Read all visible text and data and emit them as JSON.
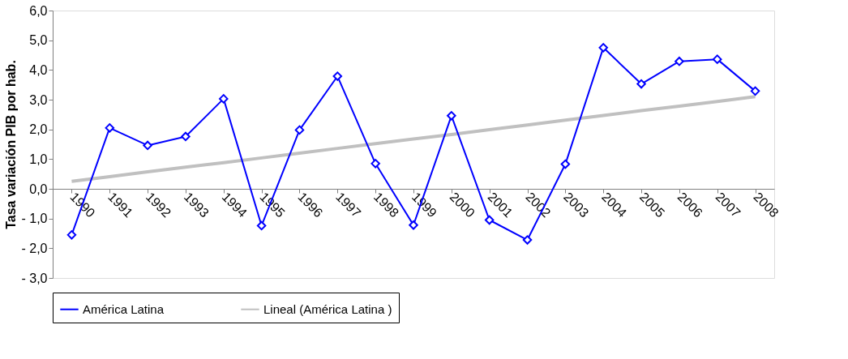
{
  "chart_data": {
    "type": "line",
    "ylabel": "Tasa variación PIB por hab.",
    "categories": [
      "1990",
      "1991",
      "1992",
      "1993",
      "1994",
      "1995",
      "1996",
      "1997",
      "1998",
      "1999",
      "2000",
      "2001",
      "2002",
      "2003",
      "2004",
      "2005",
      "2006",
      "2007",
      "2008"
    ],
    "series": [
      {
        "name": "América Latina",
        "color": "#0000ff",
        "marker": "diamond",
        "values": [
          -1.55,
          2.05,
          1.46,
          1.76,
          3.03,
          -1.24,
          1.98,
          3.79,
          0.85,
          -1.22,
          2.46,
          -1.05,
          -1.72,
          0.83,
          4.75,
          3.53,
          4.29,
          4.36,
          3.29
        ]
      },
      {
        "name": "Lineal (América Latina )",
        "color": "#c0c0c0",
        "marker": "none",
        "values": [
          0.25,
          0.41,
          0.57,
          0.73,
          0.88,
          1.04,
          1.2,
          1.36,
          1.52,
          1.68,
          1.83,
          1.99,
          2.15,
          2.31,
          2.47,
          2.63,
          2.78,
          2.94,
          3.1
        ]
      }
    ],
    "ylim": [
      -3,
      6
    ],
    "yticks": [
      {
        "value": -3,
        "label": "- 3,0"
      },
      {
        "value": -2,
        "label": "- 2,0"
      },
      {
        "value": -1,
        "label": "- 1,0"
      },
      {
        "value": 0,
        "label": "0,0"
      },
      {
        "value": 1,
        "label": "1,0"
      },
      {
        "value": 2,
        "label": "2,0"
      },
      {
        "value": 3,
        "label": "3,0"
      },
      {
        "value": 4,
        "label": "4,0"
      },
      {
        "value": 5,
        "label": "5,0"
      },
      {
        "value": 6,
        "label": "6,0"
      }
    ],
    "legend": "bottom",
    "grid": false,
    "line_style": "solid"
  }
}
